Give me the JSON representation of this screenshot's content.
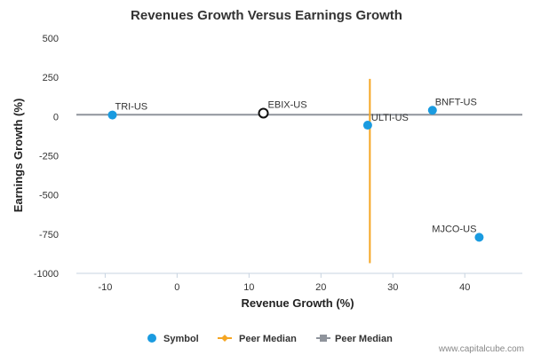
{
  "chart_data": {
    "type": "scatter",
    "title": "Revenues Growth Versus Earnings Growth",
    "xlabel": "Revenue Growth (%)",
    "ylabel": "Earnings Growth (%)",
    "xlim": [
      -14,
      48
    ],
    "ylim": [
      -1000,
      500
    ],
    "x_ticks": [
      -10,
      0,
      10,
      20,
      30,
      40
    ],
    "y_ticks": [
      500,
      250,
      0,
      -250,
      -500,
      -750,
      -1000
    ],
    "x_tick_labels": [
      "-10",
      "0",
      "10",
      "20",
      "30",
      "40"
    ],
    "y_tick_labels": [
      "500",
      "250",
      "0",
      "-250",
      "-500",
      "-750",
      "-1000"
    ],
    "points": [
      {
        "label": "TRI-US",
        "x": -9,
        "y": 10,
        "style": "filled"
      },
      {
        "label": "EBIX-US",
        "x": 12,
        "y": 22,
        "style": "hollow"
      },
      {
        "label": "ULTI-US",
        "x": 26.5,
        "y": -55,
        "style": "filled"
      },
      {
        "label": "BNFT-US",
        "x": 35.5,
        "y": 40,
        "style": "filled"
      },
      {
        "label": "MJCO-US",
        "x": 42,
        "y": -770,
        "style": "filled"
      }
    ],
    "peer_median_x": {
      "x": 26.8,
      "y_range": [
        -935,
        240
      ]
    },
    "peer_median_y": {
      "y": 12,
      "x_range": [
        -14,
        48
      ]
    },
    "legend": [
      {
        "name": "Symbol",
        "marker": "circle"
      },
      {
        "name": "Peer Median",
        "marker": "diamond-line"
      },
      {
        "name": "Peer Median",
        "marker": "square-line"
      }
    ],
    "legend_position": "bottom",
    "grid": false
  },
  "colors": {
    "point": "#1a9be0",
    "hollow_stroke": "#111111",
    "peer_median_vertical": "#f5a623",
    "peer_median_horizontal": "#8f949c",
    "axis": "#c7d3e0"
  },
  "credit": "www.capitalcube.com"
}
